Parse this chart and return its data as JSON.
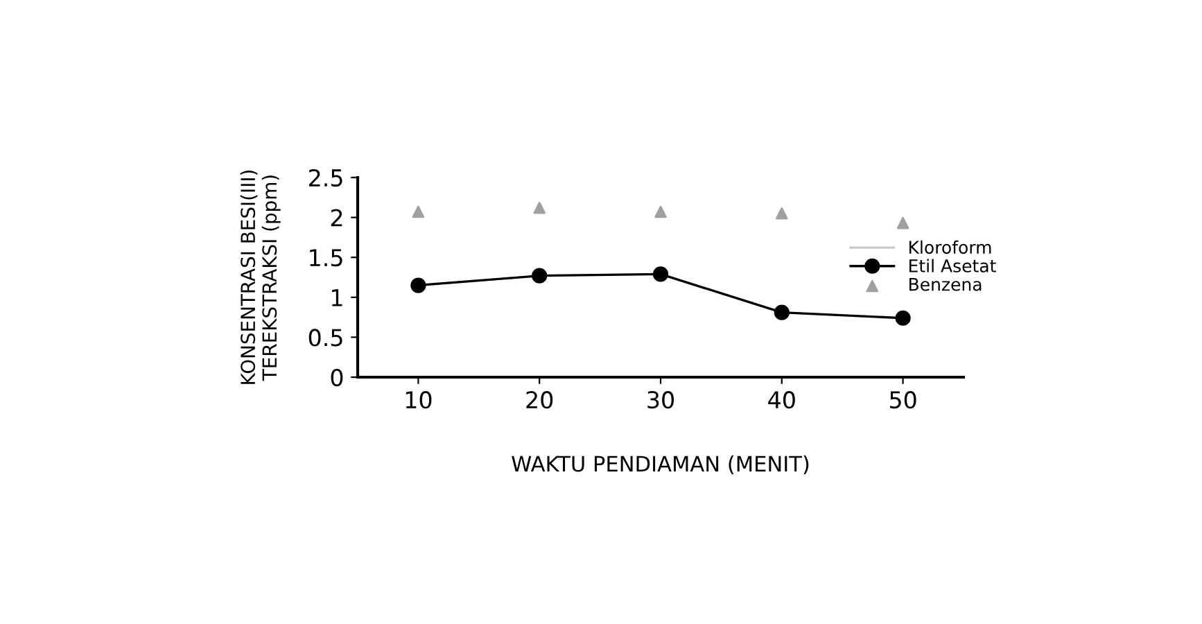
{
  "chart_data": {
    "type": "line",
    "xlabel": "WAKTU PENDIAMAN (MENIT)",
    "ylabel": "KONSENTRASI BESI(III)\nTEREKSTRAKSI (ppm)",
    "x": [
      10,
      20,
      30,
      40,
      50
    ],
    "xlim": [
      5,
      55
    ],
    "xticks": [
      10,
      20,
      30,
      40,
      50
    ],
    "ylim": [
      0,
      2.5
    ],
    "yticks": [
      0,
      0.5,
      1,
      1.5,
      2,
      2.5
    ],
    "grid": false,
    "legend": "right",
    "series": [
      {
        "name": "Kloroform",
        "color": "#c8c8c8",
        "values": [
          null,
          null,
          null,
          null,
          null
        ],
        "marker": "none"
      },
      {
        "name": "Etil Asetat",
        "color": "#000000",
        "values": [
          1.15,
          1.27,
          1.29,
          0.81,
          0.74
        ],
        "marker": "circle",
        "line_style": "solid"
      },
      {
        "name": "Benzena",
        "type": "scatter",
        "color": "#a0a0a0",
        "values": [
          2.07,
          2.12,
          2.07,
          2.05,
          1.93
        ],
        "marker": "triangle"
      }
    ]
  }
}
